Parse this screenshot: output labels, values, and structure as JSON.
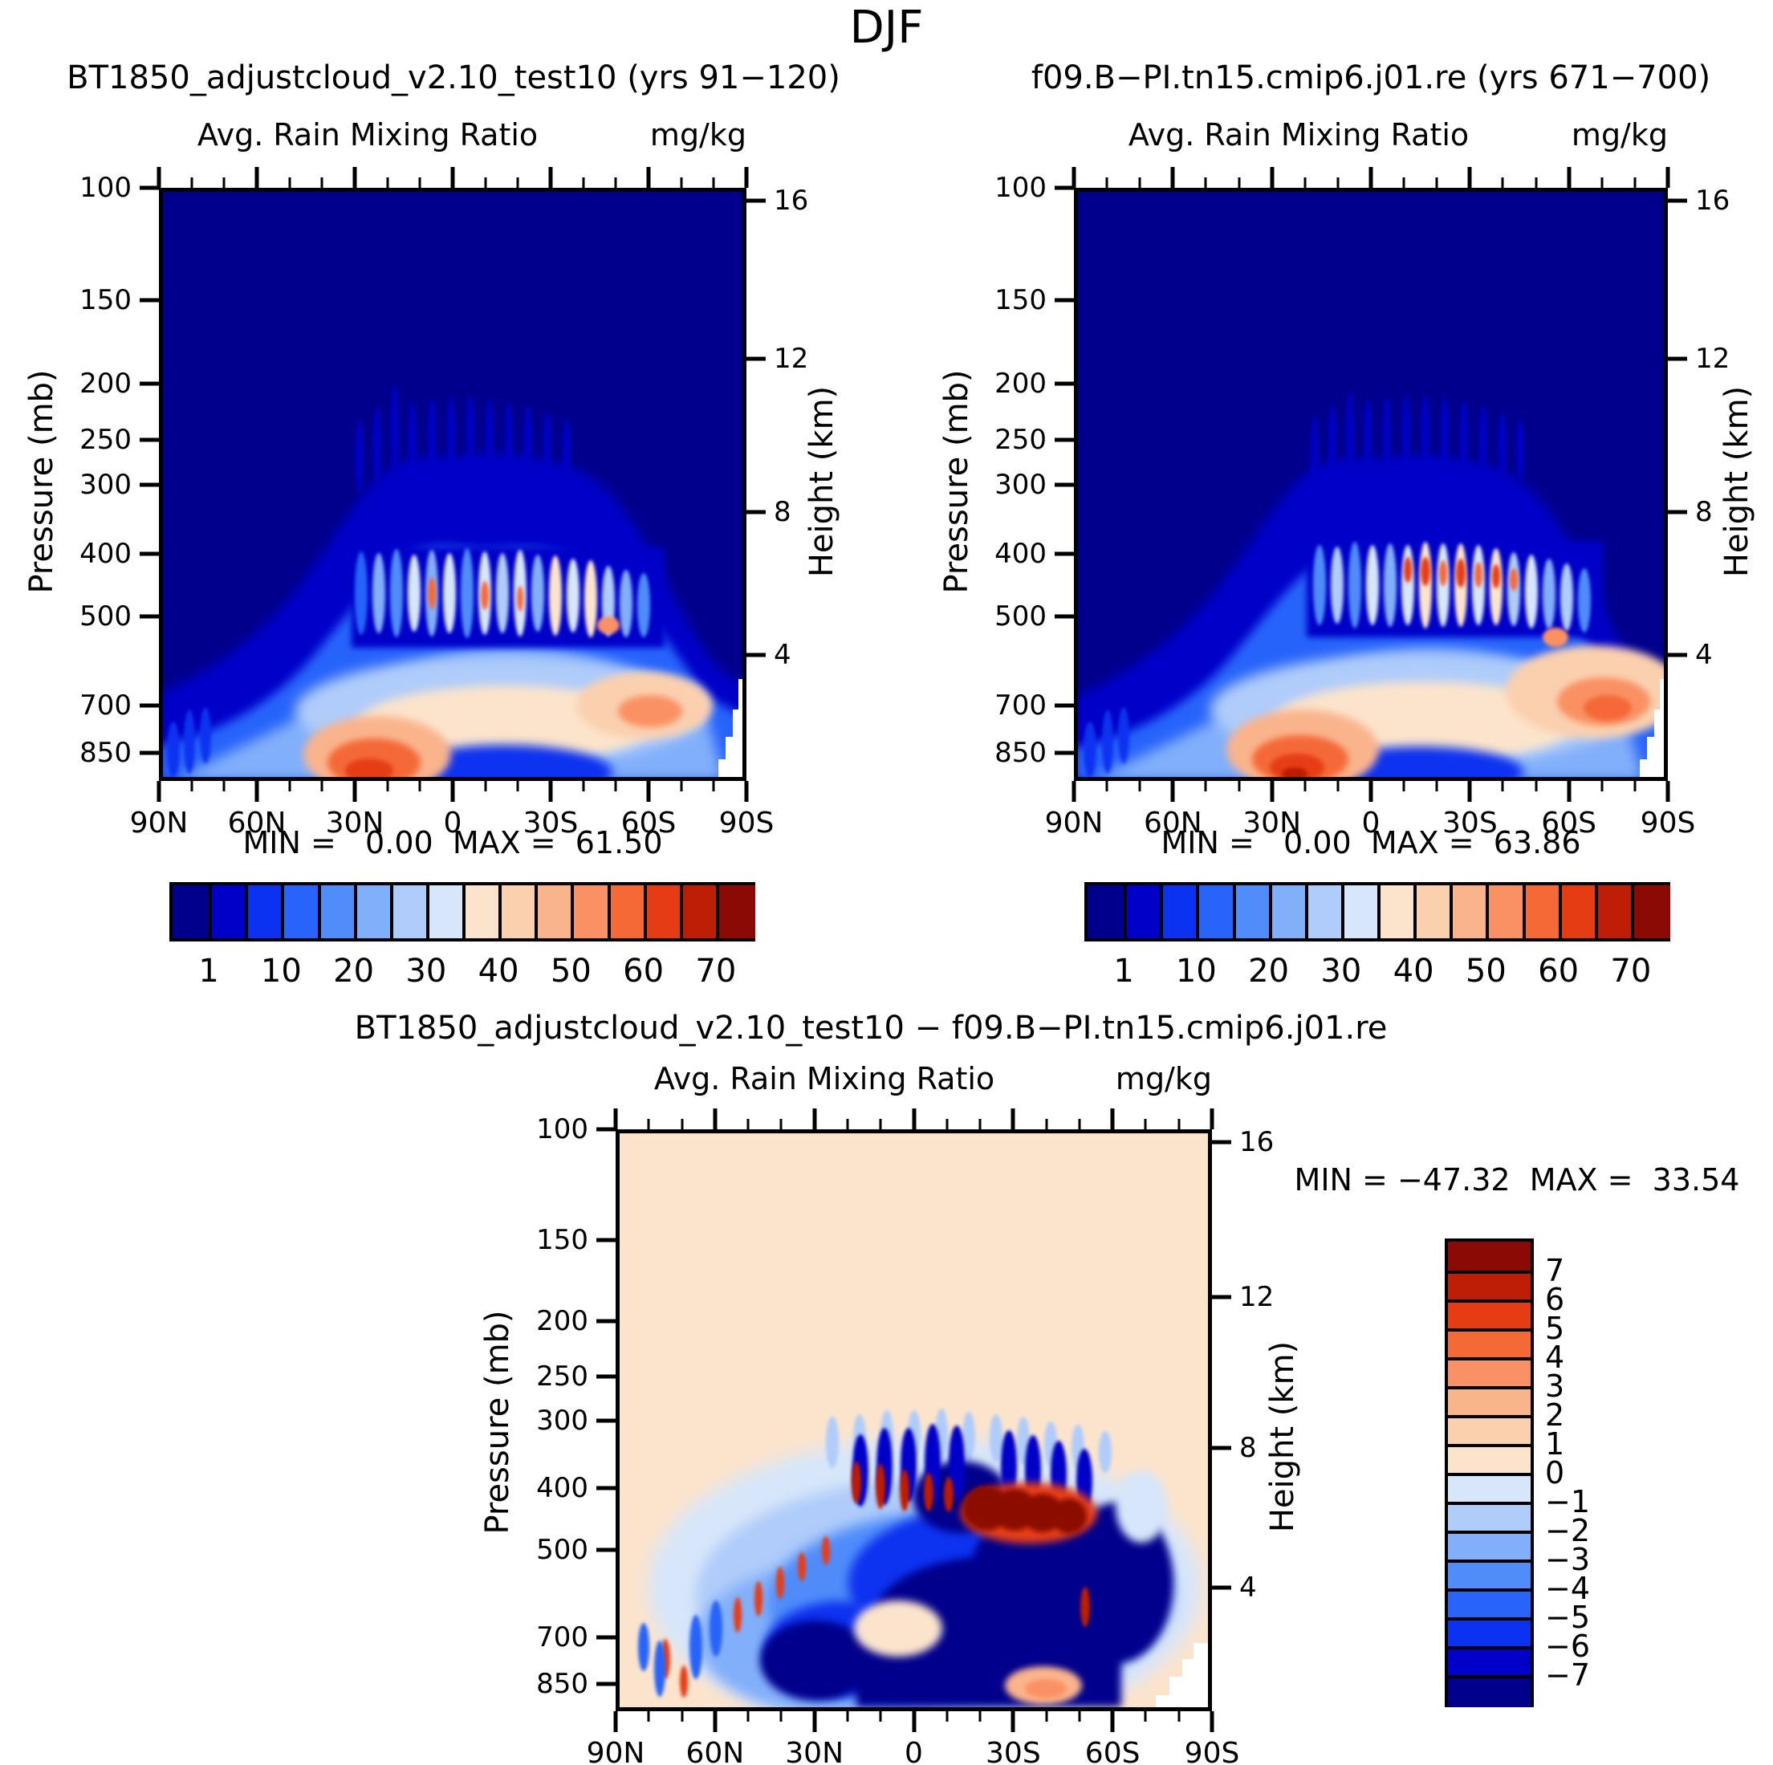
{
  "page": {
    "title": "DJF"
  },
  "palette": [
    "#00008C",
    "#0000C8",
    "#0A32F0",
    "#2864FA",
    "#508CFA",
    "#82AFFA",
    "#AFCCFA",
    "#D7E6FA",
    "#FCE4CC",
    "#FAD0AF",
    "#FAB48C",
    "#FA9164",
    "#F56937",
    "#E63C14",
    "#BE1E05",
    "#8C0A05"
  ],
  "axis": {
    "x_ticks": [
      {
        "t": "90N",
        "f": 0
      },
      {
        "t": "60N",
        "f": 0.1667
      },
      {
        "t": "30N",
        "f": 0.3333
      },
      {
        "t": "0",
        "f": 0.5
      },
      {
        "t": "30S",
        "f": 0.6667
      },
      {
        "t": "60S",
        "f": 0.8333
      },
      {
        "t": "90S",
        "f": 1
      }
    ],
    "pressure_ticks": [
      {
        "t": "100",
        "f": 0
      },
      {
        "t": "150",
        "f": 0.19
      },
      {
        "t": "200",
        "f": 0.33
      },
      {
        "t": "250",
        "f": 0.425
      },
      {
        "t": "300",
        "f": 0.5
      },
      {
        "t": "400",
        "f": 0.617
      },
      {
        "t": "500",
        "f": 0.723
      },
      {
        "t": "700",
        "f": 0.873
      },
      {
        "t": "850",
        "f": 0.953
      }
    ],
    "height_ticks": [
      {
        "t": "16",
        "f": 0.022
      },
      {
        "t": "12",
        "f": 0.288
      },
      {
        "t": "8",
        "f": 0.547
      },
      {
        "t": "4",
        "f": 0.787
      }
    ],
    "ylabel_left": "Pressure (mb)",
    "ylabel_right": "Height (km)"
  },
  "panels": {
    "left": {
      "title": "BT1850_adjustcloud_v2.10_test10 (yrs 91−120)",
      "subtitle": "Avg. Rain Mixing Ratio",
      "units": "mg/kg",
      "stats": "MIN =   0.00  MAX =  61.50"
    },
    "right": {
      "title": "f09.B−PI.tn15.cmip6.j01.re (yrs 671−700)",
      "subtitle": "Avg. Rain Mixing Ratio",
      "units": "mg/kg",
      "stats": "MIN =   0.00  MAX =  63.86"
    },
    "diff": {
      "title": "BT1850_adjustcloud_v2.10_test10 − f09.B−PI.tn15.cmip6.j01.re",
      "subtitle": "Avg. Rain Mixing Ratio",
      "units": "mg/kg",
      "stats": "MIN = −47.32  MAX =  33.54"
    }
  },
  "colorbars": {
    "top": {
      "labels": [
        "1",
        "10",
        "20",
        "30",
        "40",
        "50",
        "60",
        "70"
      ]
    },
    "diff": {
      "labels": [
        "7",
        "6",
        "5",
        "4",
        "3",
        "2",
        "1",
        "0",
        "−1",
        "−2",
        "−3",
        "−4",
        "−5",
        "−6",
        "−7"
      ]
    }
  },
  "chart_data": [
    {
      "type": "heatmap",
      "panel": "top-left",
      "title": "BT1850_adjustcloud_v2.10_test10 (yrs 91−120)",
      "season": "DJF",
      "variable": "Avg. Rain Mixing Ratio",
      "units": "mg/kg",
      "x_ticks": [
        "90N",
        "60N",
        "30N",
        "0",
        "30S",
        "60S",
        "90S"
      ],
      "y_left_label": "Pressure (mb)",
      "y_left_ticks": [
        100,
        150,
        200,
        250,
        300,
        400,
        500,
        700,
        850
      ],
      "y_right_label": "Height (km)",
      "y_right_ticks": [
        16,
        12,
        8,
        4
      ],
      "min": 0.0,
      "max": 61.5,
      "contour_levels": [
        1,
        5,
        10,
        15,
        20,
        25,
        30,
        35,
        40,
        45,
        50,
        55,
        60,
        65,
        70
      ],
      "labeled_levels": [
        1,
        10,
        20,
        30,
        40,
        50,
        60,
        70
      ],
      "colormap": "16-step dark-blue to dark-red; values <1 mg/kg fill as dark navy",
      "features": [
        "rain confined below ~8 km; upper half of panel uniform <1 mg/kg",
        "surface maximum ~45 mg/kg near 20-25N at 850-900 mb",
        "secondary peach maximum ~35 mg/kg near 35-45S around 700 mb",
        "narrow vertical cells of 30-45 mg/kg at 400-520 mb between 10N and 35S",
        "white no-data notch over Antarctica (75-90S below ~600 mb)"
      ]
    },
    {
      "type": "heatmap",
      "panel": "top-right",
      "title": "f09.B−PI.tn15.cmip6.j01.re (yrs 671−700)",
      "season": "DJF",
      "variable": "Avg. Rain Mixing Ratio",
      "units": "mg/kg",
      "x_ticks": [
        "90N",
        "60N",
        "30N",
        "0",
        "30S",
        "60S",
        "90S"
      ],
      "y_left_label": "Pressure (mb)",
      "y_left_ticks": [
        100,
        150,
        200,
        250,
        300,
        400,
        500,
        700,
        850
      ],
      "y_right_label": "Height (km)",
      "y_right_ticks": [
        16,
        12,
        8,
        4
      ],
      "min": 0.0,
      "max": 63.86,
      "contour_levels": [
        1,
        5,
        10,
        15,
        20,
        25,
        30,
        35,
        40,
        45,
        50,
        55,
        60,
        65,
        70
      ],
      "labeled_levels": [
        1,
        10,
        20,
        30,
        40,
        50,
        60,
        70
      ],
      "colormap": "16-step dark-blue to dark-red; values <1 mg/kg fill as dark navy",
      "features": [
        "same structure as left panel but stronger mid-level cells",
        "orange-red cells ~50-60 mg/kg at 450 mb between equator and 25S",
        "surface maximum ~50 mg/kg near 20-25N at 850-900 mb",
        "broad peach maximum ~40 mg/kg near 30-45S around 700 mb",
        "white no-data notch over Antarctica (75-90S below ~600 mb)"
      ]
    },
    {
      "type": "heatmap",
      "panel": "bottom-difference",
      "title": "BT1850_adjustcloud_v2.10_test10 − f09.B−PI.tn15.cmip6.j01.re",
      "season": "DJF",
      "variable": "Avg. Rain Mixing Ratio difference",
      "units": "mg/kg",
      "x_ticks": [
        "90N",
        "60N",
        "30N",
        "0",
        "30S",
        "60S",
        "90S"
      ],
      "y_left_label": "Pressure (mb)",
      "y_left_ticks": [
        100,
        150,
        200,
        250,
        300,
        400,
        500,
        700,
        850
      ],
      "y_right_label": "Height (km)",
      "y_right_ticks": [
        16,
        12,
        8,
        4
      ],
      "min": -47.32,
      "max": 33.54,
      "contour_levels": [
        -7,
        -6,
        -5,
        -4,
        -3,
        -2,
        -1,
        0,
        1,
        2,
        3,
        4,
        5,
        6,
        7
      ],
      "labeled_levels": [
        -7,
        -6,
        -5,
        -4,
        -3,
        -2,
        -1,
        0,
        1,
        2,
        3,
        4,
        5,
        6,
        7
      ],
      "colormap": "16-step dark-blue to dark-red centered on 0; 0 to +1 cream background",
      "features": [
        "uniform 0 to +1 (cream) above ~8 km",
        "broad negative region (-2 to beyond -7) through lower troposphere 55N-65S",
        "alternating narrow +/- vertical streaks 30N-30S at 400-550 mb",
        "strong positive cells exceeding +7 near 5-30S at 450-550 mb",
        "positive patch ~+2 near 45S at 850 mb",
        "white no-data notch over Antarctica (70-90S at low levels)"
      ]
    }
  ]
}
